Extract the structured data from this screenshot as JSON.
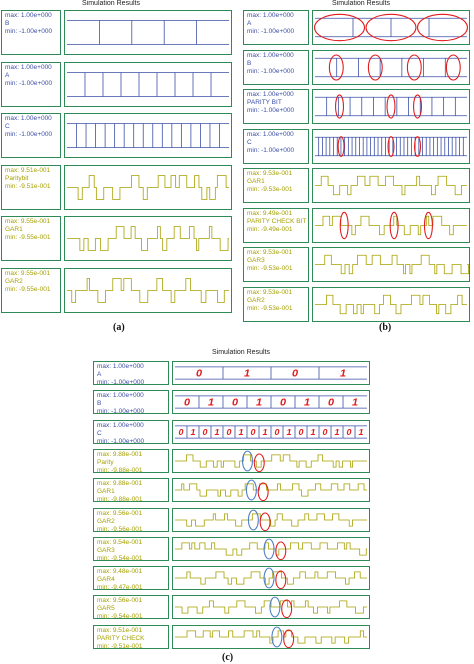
{
  "colors": {
    "frame": "#2e8b57",
    "blue": "#3b4fa6",
    "olive": "#a6a000",
    "red": "#e21b1b",
    "ellipse_blue": "#4d7fc6"
  },
  "panel_a": {
    "title": "Simulation Results",
    "caption": "(a)",
    "rows": [
      {
        "max": "max: 1.00e+000",
        "name": "B",
        "min": "min: -1.00e+000",
        "color": "blue",
        "kind": "square",
        "edges": 4,
        "text_order": "max-name-min"
      },
      {
        "max": "max: 1.00e+000",
        "name": "A",
        "min": "min: -1.00e+000",
        "color": "blue",
        "kind": "square",
        "edges": 8,
        "text_order": "max-name-min"
      },
      {
        "max": "max: 1.00e+000",
        "name": "C",
        "min": "min: -1.00e+000",
        "color": "blue",
        "kind": "square",
        "edges": 16,
        "text_order": "max-name-min"
      },
      {
        "max": "max: 9.51e-001",
        "name": "Paritybit",
        "min": "min: -9.51e-001",
        "color": "olive",
        "kind": "pulse",
        "seed": 3,
        "text_order": "max-name-min"
      },
      {
        "max": "max: 9.55e-001",
        "name": "GAR1",
        "min": "min: -9.55e-001",
        "color": "olive",
        "kind": "pulse",
        "seed": 7,
        "text_order": "max-name-min"
      },
      {
        "max": "max: 9.55e-001",
        "name": "GAR2",
        "min": "min: -9.55e-001",
        "color": "olive",
        "kind": "pulse",
        "seed": 11,
        "text_order": "max-name-min"
      }
    ]
  },
  "panel_b": {
    "title": "Simulation Results",
    "caption": "(b)",
    "rows": [
      {
        "max": "max: 1.00e+000",
        "name": "A",
        "min": "min: -1.00e+000",
        "color": "blue",
        "kind": "square",
        "edges": 3,
        "text_order": "max-name-min"
      },
      {
        "max": "max: 1.00e+000",
        "name": "B",
        "min": "min: -1.00e+000",
        "color": "blue",
        "kind": "square",
        "edges": 6,
        "text_order": "max-name-min"
      },
      {
        "max": "max: 1.00e+000",
        "name": "PARITY BIT",
        "min": "min: -1.00e+000",
        "color": "blue",
        "kind": "square",
        "edges": 12,
        "text_order": "max-name-min"
      },
      {
        "max": "max: 1.00e+000",
        "name": "C",
        "min": "min: -1.00e+000",
        "color": "blue",
        "kind": "square",
        "edges": 40,
        "text_order": "max-name-min"
      },
      {
        "max": "max: 9.53e-001",
        "name": "GAR1",
        "min": "min: -9.53e-001",
        "color": "olive",
        "kind": "pulse",
        "seed": 5,
        "text_order": "max-name-min"
      },
      {
        "max": "max: 9.49e-001",
        "name": "PARITY CHECK BIT",
        "min": "min: -9.49e-001",
        "color": "olive",
        "kind": "pulse",
        "seed": 9,
        "text_order": "max-name-min"
      },
      {
        "max": "max: 9.53e-001",
        "name": "GAR3",
        "min": "min: -9.53e-001",
        "color": "olive",
        "kind": "pulse",
        "seed": 13,
        "text_order": "max-name-min"
      },
      {
        "max": "max: 9.53e-001",
        "name": "GAR2",
        "min": "min: -9.53e-001",
        "color": "olive",
        "kind": "pulse",
        "seed": 17,
        "text_order": "max-name-min"
      }
    ]
  },
  "panel_c": {
    "title": "Simulation Results",
    "caption": "(c)",
    "rows": [
      {
        "max": "max: 1.00e+000",
        "name": "A",
        "min": "min: -1.00e+000",
        "color": "blue",
        "kind": "bits",
        "bits": [
          "0",
          "1",
          "0",
          "1"
        ],
        "text_order": "max-name-min"
      },
      {
        "max": "max: 1.00e+000",
        "name": "B",
        "min": "min: -1.00e+000",
        "color": "blue",
        "kind": "bits",
        "bits": [
          "0",
          "1",
          "0",
          "1",
          "0",
          "1",
          "0",
          "1"
        ],
        "text_order": "max-name-min"
      },
      {
        "max": "max: 1.00e+000",
        "name": "C",
        "min": "min: -1.00e+000",
        "color": "blue",
        "kind": "bits",
        "bits": [
          "0",
          "1",
          "0",
          "1",
          "0",
          "1",
          "0",
          "1",
          "0",
          "1",
          "0",
          "1",
          "0",
          "1",
          "0",
          "1"
        ],
        "text_order": "max-name-min"
      },
      {
        "max": "max: 9.88e-001",
        "name": "Parity",
        "min": "min: -9.88e-001",
        "color": "olive",
        "kind": "pulse",
        "seed": 21,
        "text_order": "max-name-min"
      },
      {
        "max": "max: 9.88e-001",
        "name": "GAR1",
        "min": "min: -9.88e-001",
        "color": "olive",
        "kind": "pulse",
        "seed": 23,
        "text_order": "max-name-min"
      },
      {
        "max": "max: 9.56e-001",
        "name": "GAR2",
        "min": "min: -9.56e-001",
        "color": "olive",
        "kind": "pulse",
        "seed": 25,
        "text_order": "max-name-min"
      },
      {
        "max": "max: 9.54e-001",
        "name": "GAR3",
        "min": "min: -9.54e-001",
        "color": "olive",
        "kind": "pulse",
        "seed": 27,
        "text_order": "max-name-min"
      },
      {
        "max": "max: 9.48e-001",
        "name": "GAR4",
        "min": "min: -9.47e-001",
        "color": "olive",
        "kind": "pulse",
        "seed": 29,
        "text_order": "max-name-min"
      },
      {
        "max": "max: 9.56e-001",
        "name": "GAR5",
        "min": "min: -9.54e-001",
        "color": "olive",
        "kind": "pulse",
        "seed": 31,
        "text_order": "max-name-min"
      },
      {
        "max": "max: 9.51e-001",
        "name": "PARITY CHECK",
        "min": "min: -9.51e-001",
        "color": "olive",
        "kind": "pulse",
        "seed": 33,
        "text_order": "max-name-min"
      }
    ]
  },
  "chart_data": [
    {
      "type": "line",
      "title": "Simulation Results",
      "series": [
        {
          "name": "B"
        },
        {
          "name": "A"
        },
        {
          "name": "C"
        },
        {
          "name": "Paritybit"
        },
        {
          "name": "GAR1"
        },
        {
          "name": "GAR2"
        }
      ]
    },
    {
      "type": "line",
      "title": "Simulation Results",
      "series": [
        {
          "name": "A"
        },
        {
          "name": "B"
        },
        {
          "name": "PARITY BIT"
        },
        {
          "name": "C"
        },
        {
          "name": "GAR1"
        },
        {
          "name": "PARITY CHECK BIT"
        },
        {
          "name": "GAR3"
        },
        {
          "name": "GAR2"
        }
      ]
    },
    {
      "type": "line",
      "title": "Simulation Results",
      "series": [
        {
          "name": "A"
        },
        {
          "name": "B"
        },
        {
          "name": "C"
        },
        {
          "name": "Parity"
        },
        {
          "name": "GAR1"
        },
        {
          "name": "GAR2"
        },
        {
          "name": "GAR3"
        },
        {
          "name": "GAR4"
        },
        {
          "name": "GAR5"
        },
        {
          "name": "PARITY CHECK"
        }
      ]
    }
  ]
}
